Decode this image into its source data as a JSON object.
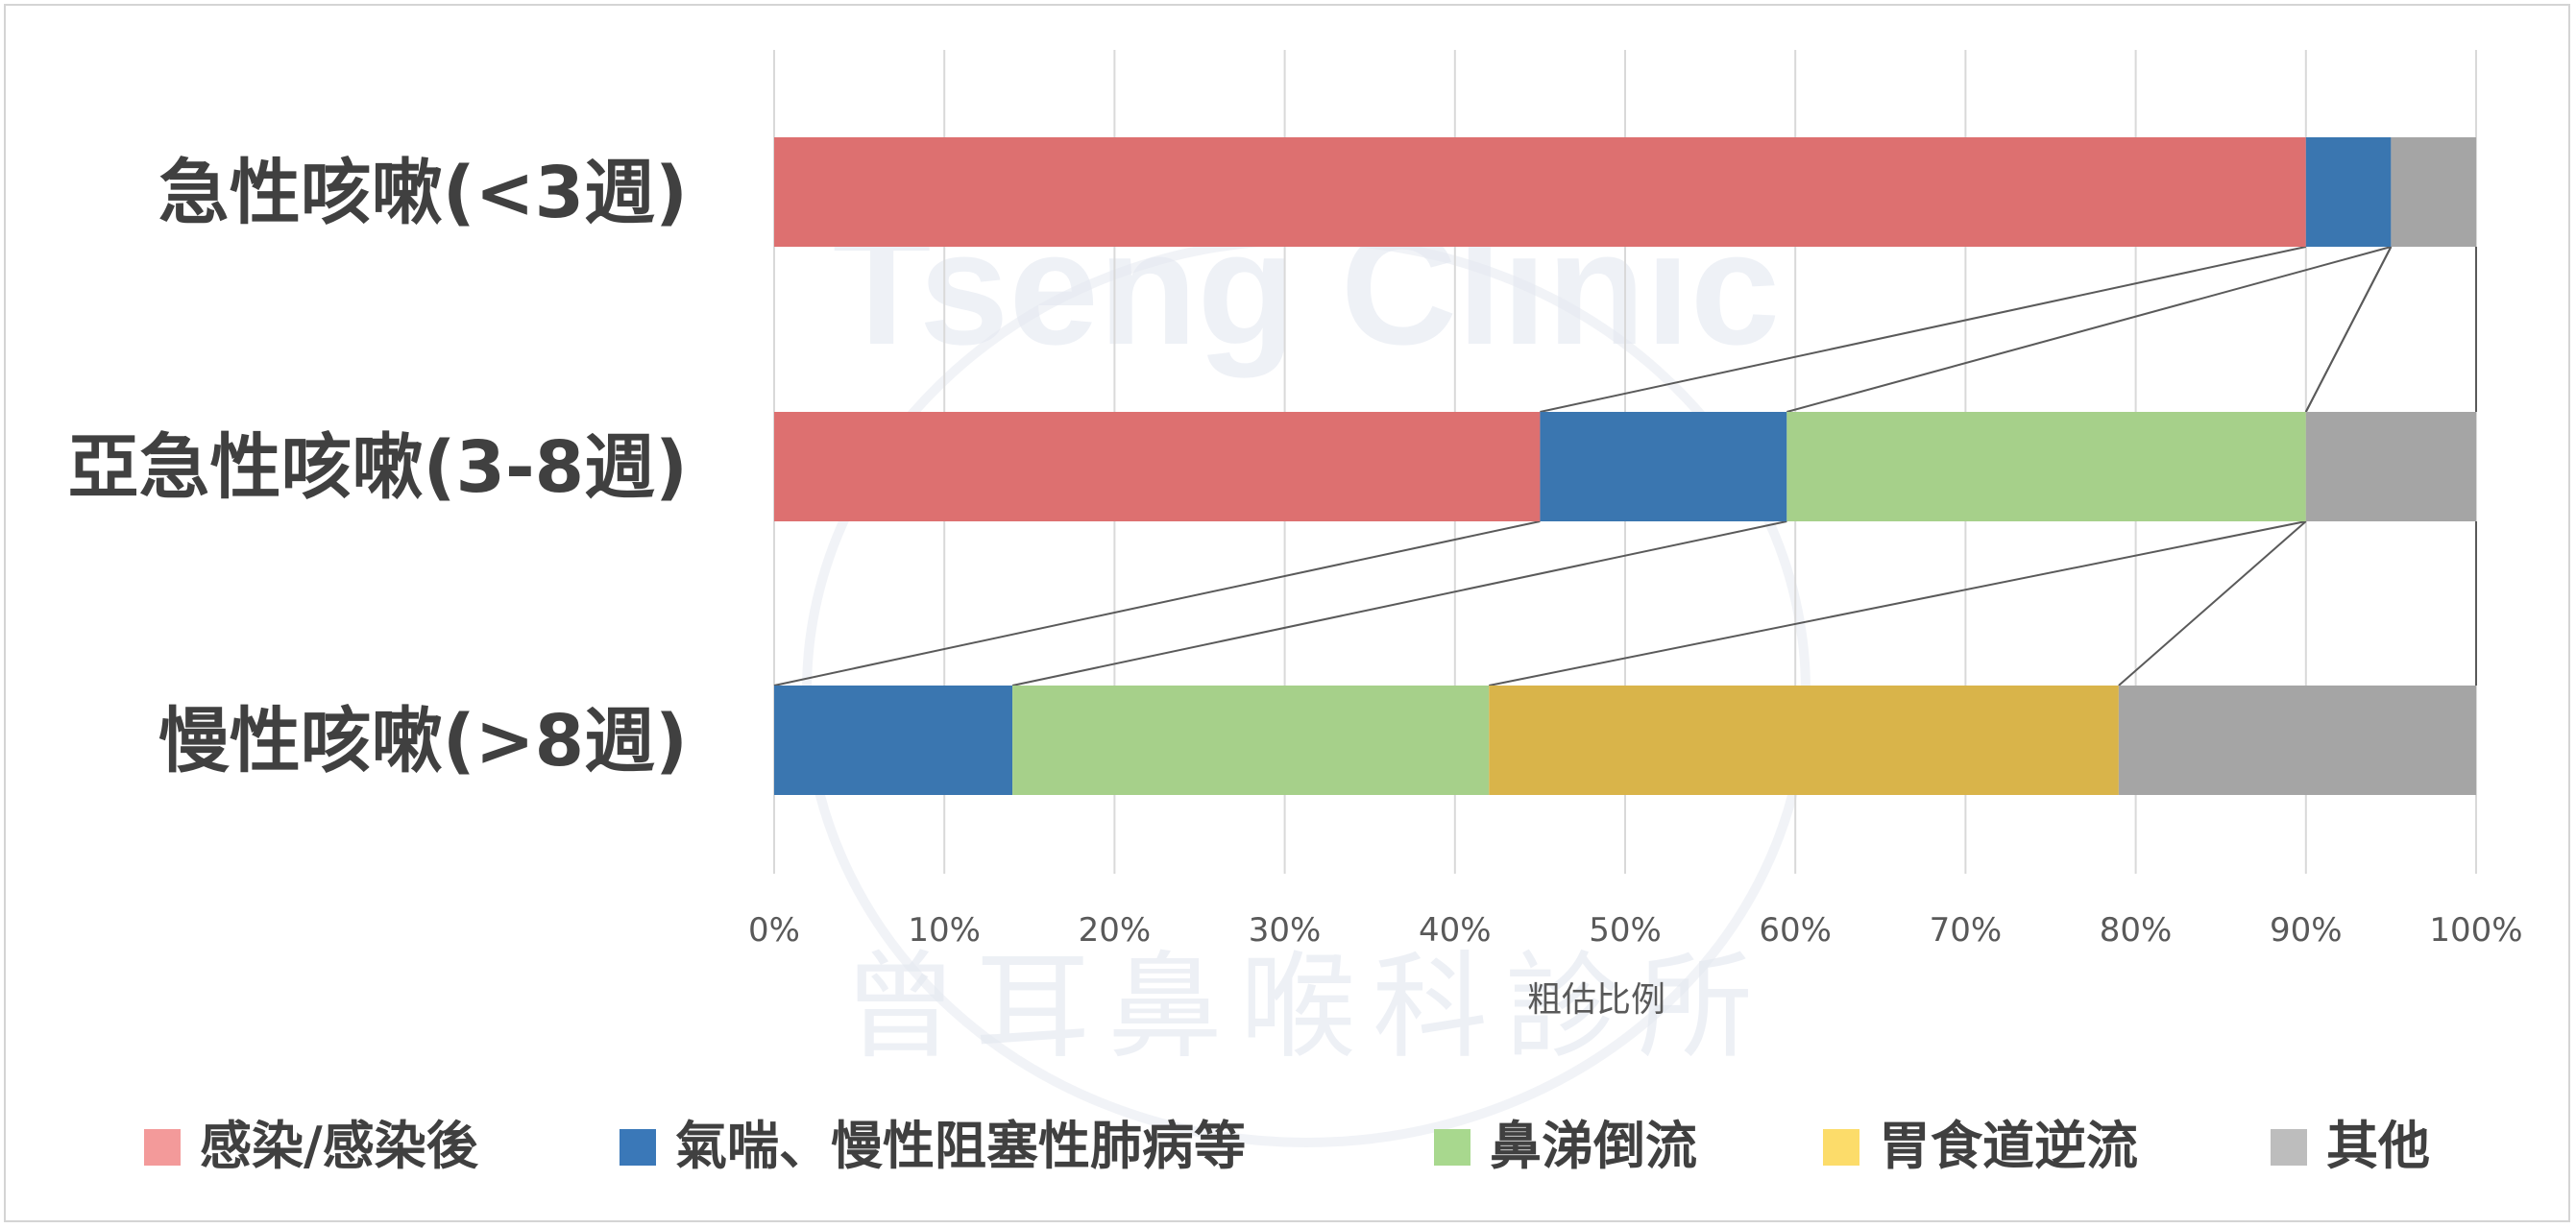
{
  "chart_data": {
    "type": "bar",
    "orientation": "horizontal",
    "stacked": "percent",
    "categories": [
      "急性咳嗽(<3週)",
      "亞急性咳嗽(3-8週)",
      "慢性咳嗽(>8週)"
    ],
    "series": [
      {
        "name": "感染/感染後",
        "values": [
          90,
          45,
          0
        ]
      },
      {
        "name": "氣喘、慢性阻塞性肺病等",
        "values": [
          5,
          14.5,
          14
        ]
      },
      {
        "name": "鼻涕倒流",
        "values": [
          0,
          30.5,
          28
        ]
      },
      {
        "name": "胃食道逆流",
        "values": [
          0,
          0,
          37
        ]
      },
      {
        "name": "其他",
        "values": [
          5,
          10,
          21
        ]
      }
    ],
    "xlabel": "粗估比例",
    "ylabel": "",
    "xlim": [
      0,
      100
    ],
    "x_ticks": [
      "0%",
      "10%",
      "20%",
      "30%",
      "40%",
      "50%",
      "60%",
      "70%",
      "80%",
      "90%",
      "100%"
    ],
    "grid": true,
    "legend": "bottom",
    "series_lines": true,
    "colors": {
      "bars": [
        "#dd7070",
        "#3a76b0",
        "#a6d08a",
        "#d9b44a",
        "#a5a5a5"
      ],
      "legend": [
        "#f39a9a",
        "#3a78b8",
        "#a8d88e",
        "#fcdc6a",
        "#bdbdbd"
      ],
      "grid": "#d9d9d9",
      "tick_text": "#595959",
      "category_text": "#404040"
    }
  },
  "watermark": {
    "line1": "Tseng Clinic",
    "line2": "曾耳鼻喉科診所"
  }
}
